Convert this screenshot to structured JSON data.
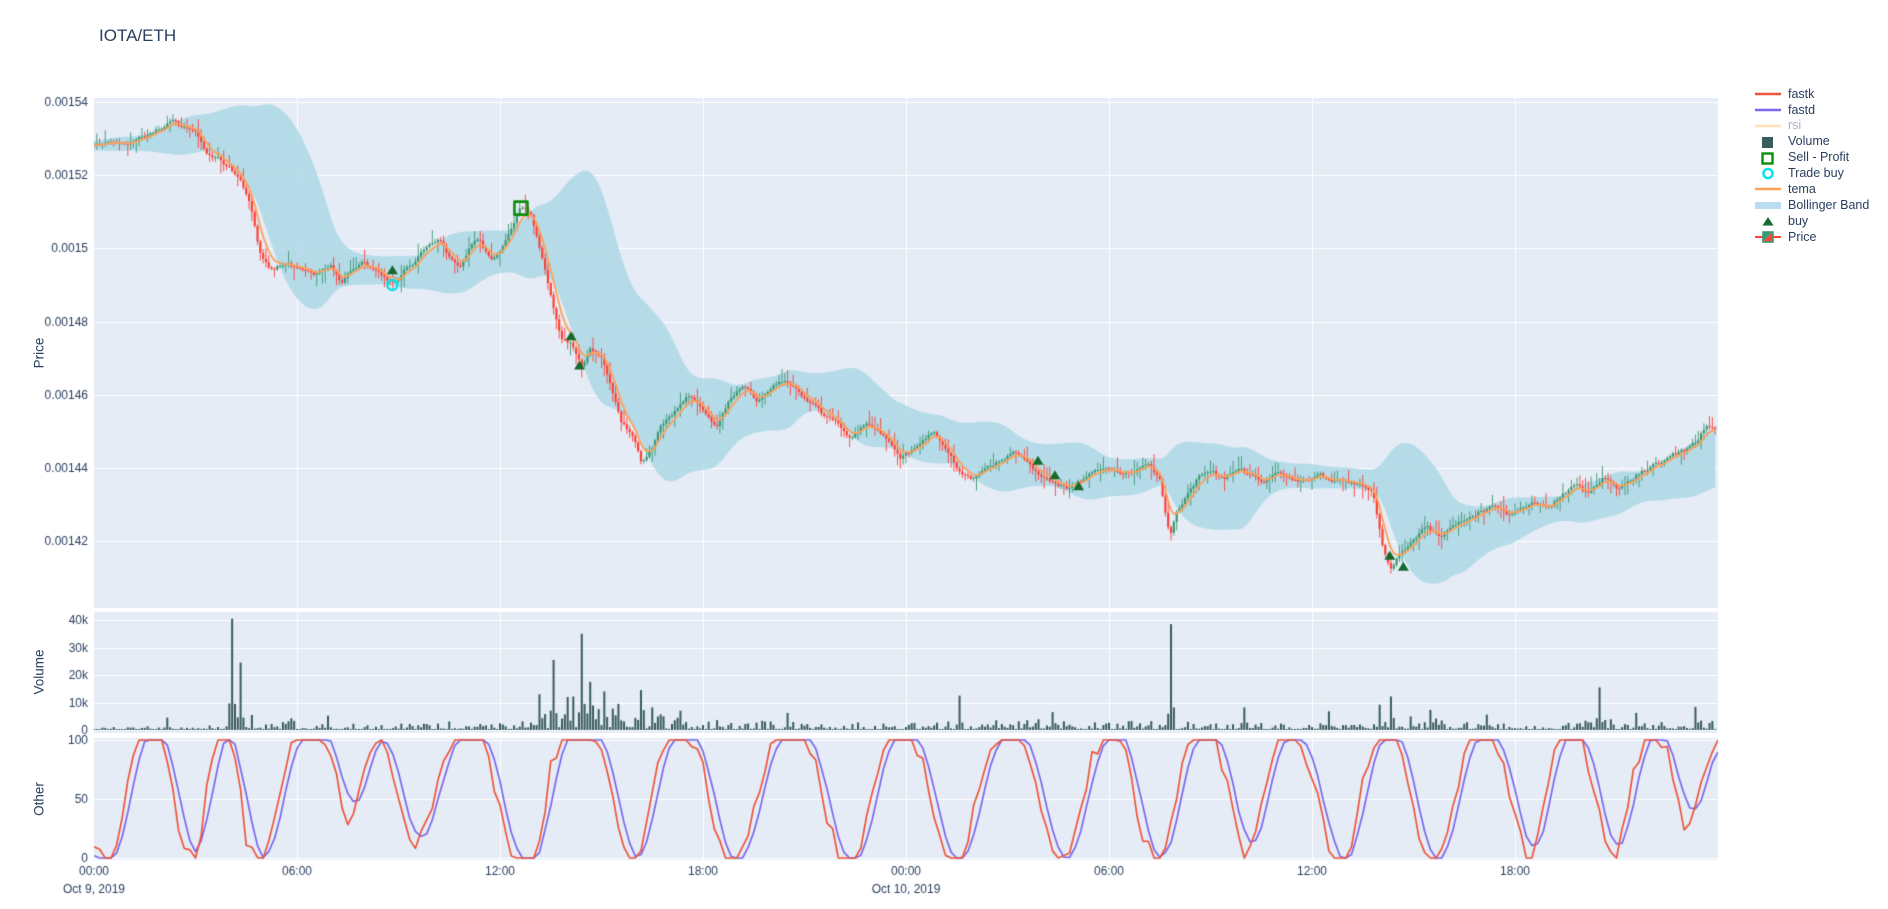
{
  "chart_data": {
    "type": "candlestick",
    "title": "IOTA/ETH",
    "x_axis": {
      "tick_hours": [
        0,
        6,
        12,
        18,
        24,
        30,
        36,
        42
      ],
      "tick_labels": [
        "00:00",
        "06:00",
        "12:00",
        "18:00",
        "00:00",
        "06:00",
        "12:00",
        "18:00"
      ],
      "date_labels": [
        {
          "hour": 0,
          "text": "Oct 9, 2019"
        },
        {
          "hour": 24,
          "text": "Oct 10, 2019"
        }
      ],
      "range_hours": [
        0,
        48
      ]
    },
    "panels": {
      "price": {
        "ylabel": "Price",
        "tick_values": [
          0.00154,
          0.00152,
          0.0015,
          0.00148,
          0.00146,
          0.00144,
          0.00142
        ],
        "tick_labels": [
          "0.00154",
          "0.00152",
          "0.0015",
          "0.00148",
          "0.00146",
          "0.00144",
          "0.00142"
        ]
      },
      "volume": {
        "ylabel": "Volume",
        "tick_values": [
          40000,
          30000,
          20000,
          10000,
          0
        ],
        "tick_labels": [
          "40k",
          "30k",
          "20k",
          "10k",
          "0"
        ]
      },
      "other": {
        "ylabel": "Other",
        "tick_values": [
          100,
          50,
          0
        ],
        "tick_labels": [
          "100",
          "50",
          "0"
        ]
      }
    },
    "series": {
      "price_keyframes": [
        [
          0,
          1528
        ],
        [
          0.5,
          1529
        ],
        [
          1,
          1529
        ],
        [
          1.5,
          1531
        ],
        [
          2,
          1533
        ],
        [
          2.3,
          1535
        ],
        [
          2.7,
          1533
        ],
        [
          3,
          1532
        ],
        [
          3.3,
          1526
        ],
        [
          3.7,
          1524
        ],
        [
          4,
          1522
        ],
        [
          4.3,
          1519
        ],
        [
          4.6,
          1513
        ],
        [
          4.9,
          1499
        ],
        [
          5.2,
          1494
        ],
        [
          5.6,
          1496
        ],
        [
          6,
          1495
        ],
        [
          6.5,
          1493
        ],
        [
          7,
          1496
        ],
        [
          7.3,
          1490
        ],
        [
          7.6,
          1494
        ],
        [
          8,
          1496
        ],
        [
          8.4,
          1493
        ],
        [
          8.8,
          1490
        ],
        [
          9.1,
          1493
        ],
        [
          9.5,
          1497
        ],
        [
          9.9,
          1501
        ],
        [
          10.2,
          1503
        ],
        [
          10.5,
          1498
        ],
        [
          10.8,
          1495
        ],
        [
          11.1,
          1500
        ],
        [
          11.4,
          1503
        ],
        [
          11.7,
          1497
        ],
        [
          12,
          1499
        ],
        [
          12.3,
          1504
        ],
        [
          12.6,
          1511
        ],
        [
          12.9,
          1509
        ],
        [
          13.2,
          1499
        ],
        [
          13.5,
          1487
        ],
        [
          13.8,
          1475
        ],
        [
          14.1,
          1474
        ],
        [
          14.4,
          1468
        ],
        [
          14.7,
          1473
        ],
        [
          15,
          1470
        ],
        [
          15.3,
          1462
        ],
        [
          15.6,
          1452
        ],
        [
          15.9,
          1450
        ],
        [
          16.2,
          1441
        ],
        [
          16.5,
          1446
        ],
        [
          16.8,
          1452
        ],
        [
          17.2,
          1456
        ],
        [
          17.6,
          1460
        ],
        [
          18,
          1456
        ],
        [
          18.4,
          1451
        ],
        [
          18.8,
          1459
        ],
        [
          19.2,
          1463
        ],
        [
          19.6,
          1458
        ],
        [
          20,
          1462
        ],
        [
          20.4,
          1464
        ],
        [
          20.8,
          1461
        ],
        [
          21.2,
          1457
        ],
        [
          21.6,
          1454
        ],
        [
          22,
          1452
        ],
        [
          22.4,
          1448
        ],
        [
          22.8,
          1452
        ],
        [
          23.2,
          1450
        ],
        [
          23.6,
          1446
        ],
        [
          23.85,
          1442
        ],
        [
          24,
          1444
        ],
        [
          24.4,
          1447
        ],
        [
          24.8,
          1450
        ],
        [
          25.2,
          1445
        ],
        [
          25.6,
          1438
        ],
        [
          26,
          1437
        ],
        [
          26.4,
          1440
        ],
        [
          26.8,
          1442
        ],
        [
          27.2,
          1444
        ],
        [
          27.6,
          1442
        ],
        [
          28,
          1438
        ],
        [
          28.4,
          1436
        ],
        [
          28.8,
          1434
        ],
        [
          29.2,
          1437
        ],
        [
          29.6,
          1439
        ],
        [
          30,
          1440
        ],
        [
          30.4,
          1438
        ],
        [
          30.8,
          1440
        ],
        [
          31.2,
          1441
        ],
        [
          31.5,
          1437
        ],
        [
          31.8,
          1421
        ],
        [
          32,
          1428
        ],
        [
          32.3,
          1433
        ],
        [
          32.6,
          1437
        ],
        [
          33,
          1439
        ],
        [
          33.4,
          1437
        ],
        [
          33.8,
          1440
        ],
        [
          34.2,
          1438
        ],
        [
          34.6,
          1436
        ],
        [
          35,
          1439
        ],
        [
          35.4,
          1437
        ],
        [
          35.8,
          1436
        ],
        [
          36.2,
          1438
        ],
        [
          36.6,
          1436
        ],
        [
          37,
          1437
        ],
        [
          37.4,
          1436
        ],
        [
          37.8,
          1433
        ],
        [
          38.1,
          1418
        ],
        [
          38.35,
          1412
        ],
        [
          38.6,
          1416
        ],
        [
          39,
          1421
        ],
        [
          39.4,
          1424
        ],
        [
          39.8,
          1421
        ],
        [
          40.2,
          1424
        ],
        [
          40.6,
          1426
        ],
        [
          41,
          1428
        ],
        [
          41.4,
          1430
        ],
        [
          41.8,
          1427
        ],
        [
          42.2,
          1429
        ],
        [
          42.6,
          1431
        ],
        [
          43,
          1429
        ],
        [
          43.4,
          1433
        ],
        [
          43.8,
          1435
        ],
        [
          44.2,
          1433
        ],
        [
          44.6,
          1437
        ],
        [
          45,
          1434
        ],
        [
          45.4,
          1437
        ],
        [
          45.8,
          1439
        ],
        [
          46.2,
          1441
        ],
        [
          46.6,
          1443
        ],
        [
          47,
          1445
        ],
        [
          47.4,
          1448
        ],
        [
          47.7,
          1452
        ],
        [
          48,
          1450
        ]
      ],
      "price_scale": 1e-06,
      "volume_baseline_per_hour": [
        600,
        700,
        900,
        1000,
        3000,
        2200,
        1100,
        1200,
        1100,
        1400,
        1600,
        1500,
        1800,
        4500,
        6500,
        5200,
        3800,
        2600,
        2000,
        1800,
        1600,
        1300,
        1500,
        1200,
        1400,
        1600,
        1900,
        2100,
        1800,
        1600,
        1700,
        2400,
        2000,
        1600,
        1500,
        1300,
        1400,
        1600,
        2800,
        2400,
        1600,
        1300,
        1200,
        1400,
        2000,
        1300,
        1600,
        2000,
        1700
      ],
      "volume_spikes": [
        [
          2.2,
          4500
        ],
        [
          4.08,
          40500
        ],
        [
          4.33,
          24500
        ],
        [
          6.9,
          5200
        ],
        [
          13.17,
          13000
        ],
        [
          13.58,
          25500
        ],
        [
          14.0,
          12000
        ],
        [
          14.42,
          35000
        ],
        [
          14.67,
          17500
        ],
        [
          15.08,
          14000
        ],
        [
          15.5,
          9500
        ],
        [
          16.17,
          14500
        ],
        [
          16.5,
          8200
        ],
        [
          17.3,
          7000
        ],
        [
          20.5,
          6200
        ],
        [
          25.58,
          12500
        ],
        [
          28.3,
          6500
        ],
        [
          31.83,
          38500
        ],
        [
          34.0,
          8200
        ],
        [
          36.5,
          6800
        ],
        [
          38.0,
          9200
        ],
        [
          38.33,
          12200
        ],
        [
          39.5,
          7300
        ],
        [
          41.2,
          5600
        ],
        [
          44.5,
          15500
        ],
        [
          45.6,
          6200
        ],
        [
          47.3,
          8400
        ]
      ],
      "fastk_halfhour": [
        20,
        0,
        60,
        100,
        100,
        35,
        0,
        80,
        100,
        25,
        0,
        55,
        100,
        100,
        80,
        30,
        70,
        100,
        55,
        15,
        45,
        85,
        100,
        90,
        45,
        5,
        0,
        70,
        100,
        100,
        85,
        30,
        0,
        55,
        95,
        100,
        70,
        20,
        0,
        40,
        90,
        100,
        100,
        55,
        10,
        0,
        50,
        95,
        100,
        75,
        25,
        0,
        40,
        80,
        100,
        90,
        40,
        0,
        30,
        75,
        100,
        80,
        25,
        0,
        55,
        100,
        100,
        60,
        10,
        45,
        90,
        100,
        65,
        15,
        0,
        60,
        100,
        95,
        45,
        0,
        30,
        80,
        100,
        85,
        35,
        0,
        65,
        100,
        90,
        40,
        5,
        70,
        100,
        80,
        25,
        60,
        100
      ]
    },
    "markers": {
      "sell_profit": [
        {
          "hour": 12.62,
          "price": 1511
        }
      ],
      "trade_buy": [
        {
          "hour": 8.82,
          "price": 1490
        }
      ],
      "buy": [
        {
          "hour": 8.82,
          "price": 1494
        },
        {
          "hour": 14.1,
          "price": 1476
        },
        {
          "hour": 14.35,
          "price": 1468
        },
        {
          "hour": 27.9,
          "price": 1442
        },
        {
          "hour": 28.4,
          "price": 1438
        },
        {
          "hour": 29.1,
          "price": 1435
        },
        {
          "hour": 38.3,
          "price": 1416
        },
        {
          "hour": 38.7,
          "price": 1413
        }
      ]
    },
    "colors": {
      "panel_bg": "#E5ECF6",
      "grid": "#ffffff",
      "axis_text": "#2a3f5f",
      "title_text": "#2a3f5f",
      "fastk": "#EF553B",
      "fastd": "#7B68EE",
      "rsi": "#FFE0B5",
      "rsi_muted_text": "#a9b1c0",
      "volume_bar": "#3A5C5C",
      "candle_up": "#3D9970",
      "candle_down": "#FF4136",
      "tema": "#FFA15A",
      "bollinger": "rgba(173,216,230,0.85)",
      "buy_marker": "#156A2D",
      "sell_marker": "#0B8F0B",
      "trade_buy_marker": "#00E5EE"
    },
    "legend": {
      "items": [
        {
          "label": "fastk",
          "type": "line",
          "color": "#EF553B",
          "icon": "fastk-line-icon"
        },
        {
          "label": "fastd",
          "type": "line",
          "color": "#7B68EE",
          "icon": "fastd-line-icon"
        },
        {
          "label": "rsi",
          "type": "line",
          "color": "#FFE0B5",
          "icon": "rsi-line-icon",
          "muted": true
        },
        {
          "label": "Volume",
          "type": "square-fill",
          "color": "#3A5C5C",
          "icon": "volume-square-icon"
        },
        {
          "label": "Sell - Profit",
          "type": "square-open",
          "color": "#0B8F0B",
          "icon": "sell-profit-square-icon"
        },
        {
          "label": "Trade buy",
          "type": "circle-open",
          "color": "#00E5EE",
          "icon": "trade-buy-circle-icon"
        },
        {
          "label": "tema",
          "type": "line",
          "color": "#FFA15A",
          "icon": "tema-line-icon"
        },
        {
          "label": "Bollinger Band",
          "type": "band",
          "color": "#B9DCF0",
          "icon": "bollinger-band-icon"
        },
        {
          "label": "buy",
          "type": "triangle",
          "color": "#156A2D",
          "icon": "buy-triangle-icon"
        },
        {
          "label": "Price",
          "type": "candlestick",
          "colors": [
            "#3D9970",
            "#FF4136"
          ],
          "icon": "price-candlestick-icon"
        }
      ]
    }
  }
}
